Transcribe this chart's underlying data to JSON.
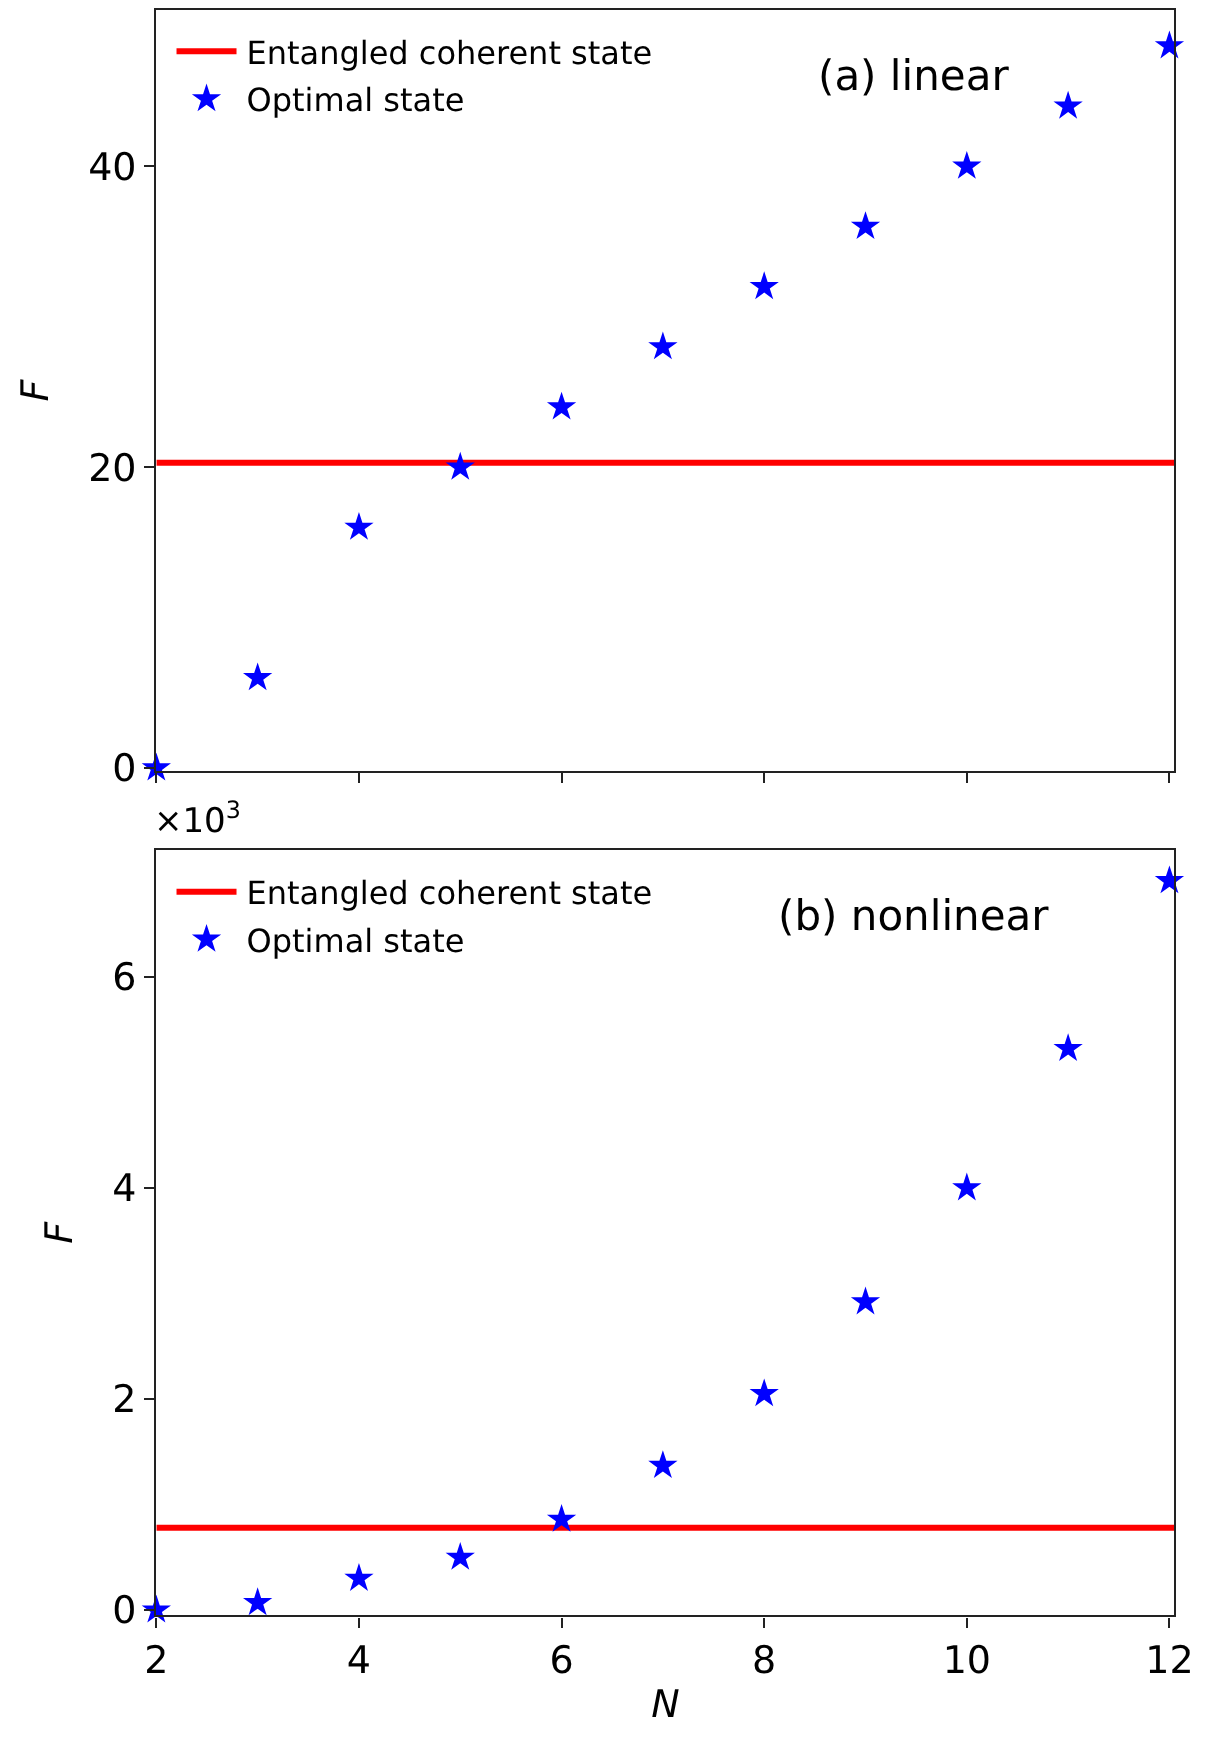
{
  "chart_data": [
    {
      "type": "scatter",
      "ylabel": "F",
      "annotations": [
        "(a) linear"
      ],
      "x": [
        2,
        3,
        4,
        5,
        6,
        7,
        8,
        9,
        10,
        11,
        12
      ],
      "series": [
        {
          "name": "Optimal state",
          "color": "#0000ff",
          "values": [
            0,
            6,
            16,
            20,
            24,
            28,
            32,
            36,
            40,
            44,
            48
          ]
        }
      ],
      "ref_lines": [
        {
          "axis": "y",
          "value": 20.3,
          "label": "Entangled coherent state",
          "color": "#ff0000",
          "line_style": "solid"
        }
      ],
      "xlim": [
        2,
        12.05
      ],
      "xticks": [
        {
          "value": 2,
          "label": null
        },
        {
          "value": 4,
          "label": null
        },
        {
          "value": 6,
          "label": null
        },
        {
          "value": 8,
          "label": null
        },
        {
          "value": 10,
          "label": null
        },
        {
          "value": 12,
          "label": null
        }
      ],
      "ylim": [
        -0.2,
        50.4
      ],
      "yticks": [
        0,
        20,
        40
      ],
      "tick_labels": "y",
      "marker": "star",
      "legend": "top left"
    },
    {
      "type": "scatter",
      "xlabel": "N",
      "ylabel": "F",
      "annotations": [
        "×10$^{3}$",
        "(b) nonlinear"
      ],
      "x": [
        2,
        3,
        4,
        5,
        6,
        7,
        8,
        9,
        10,
        11,
        12
      ],
      "series": [
        {
          "name": "Optimal state",
          "color": "#0000ff",
          "values": [
            0,
            0.07,
            0.3,
            0.5,
            0.86,
            1.37,
            2.05,
            2.92,
            4.0,
            5.32,
            6.91
          ]
        }
      ],
      "ref_lines": [
        {
          "axis": "y",
          "value": 0.78,
          "label": "Entangled coherent state",
          "color": "#ff0000",
          "line_style": "solid"
        }
      ],
      "xlim": [
        2,
        12.05
      ],
      "xticks": [
        2,
        4,
        6,
        8,
        10,
        12
      ],
      "ylim": [
        -0.05,
        7.2
      ],
      "yticks": [
        0,
        2,
        4,
        6
      ],
      "marker": "star",
      "legend": "top left"
    }
  ]
}
